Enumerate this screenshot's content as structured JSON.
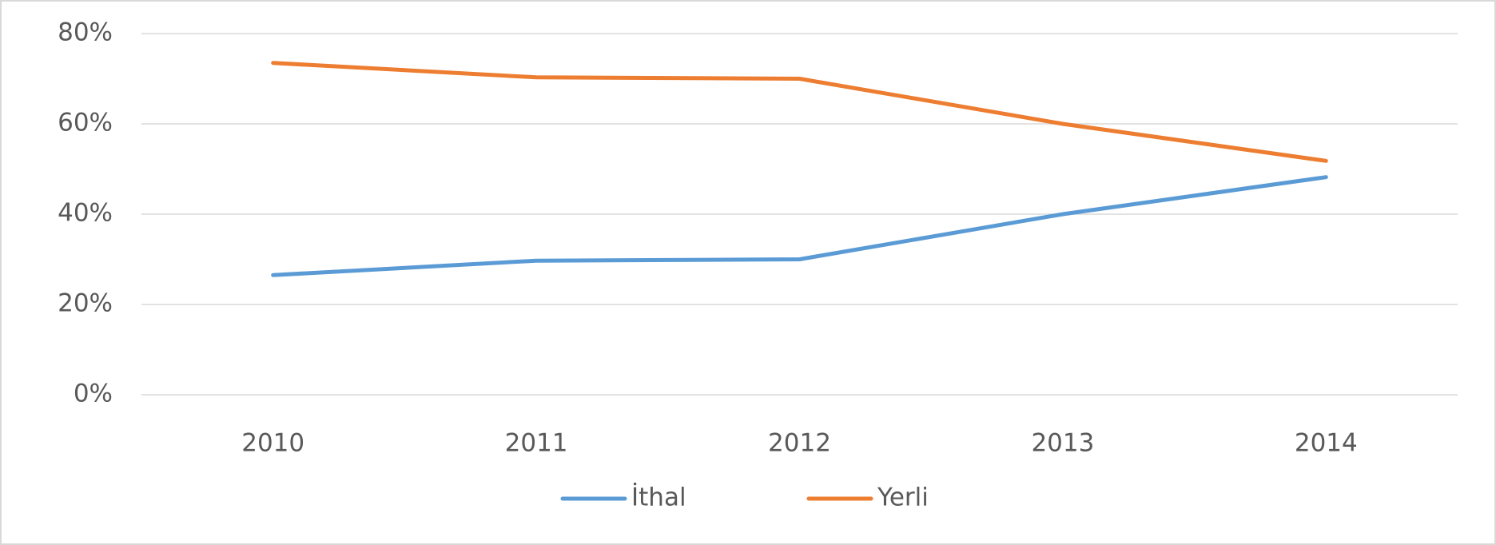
{
  "chart_data": {
    "type": "line",
    "categories": [
      "2010",
      "2011",
      "2012",
      "2013",
      "2014"
    ],
    "series": [
      {
        "name": "İthal",
        "color": "#5b9bd5",
        "values": [
          26.5,
          29.7,
          30,
          40,
          48.2
        ]
      },
      {
        "name": "Yerli",
        "color": "#ed7d31",
        "values": [
          73.5,
          70.3,
          70,
          60,
          51.8
        ]
      }
    ],
    "ylim": [
      0,
      80
    ],
    "yticks": [
      {
        "value": 0,
        "label": "0%"
      },
      {
        "value": 20,
        "label": "20%"
      },
      {
        "value": 40,
        "label": "40%"
      },
      {
        "value": 60,
        "label": "60%"
      },
      {
        "value": 80,
        "label": "80%"
      }
    ],
    "grid": true,
    "legend": "bottom"
  }
}
